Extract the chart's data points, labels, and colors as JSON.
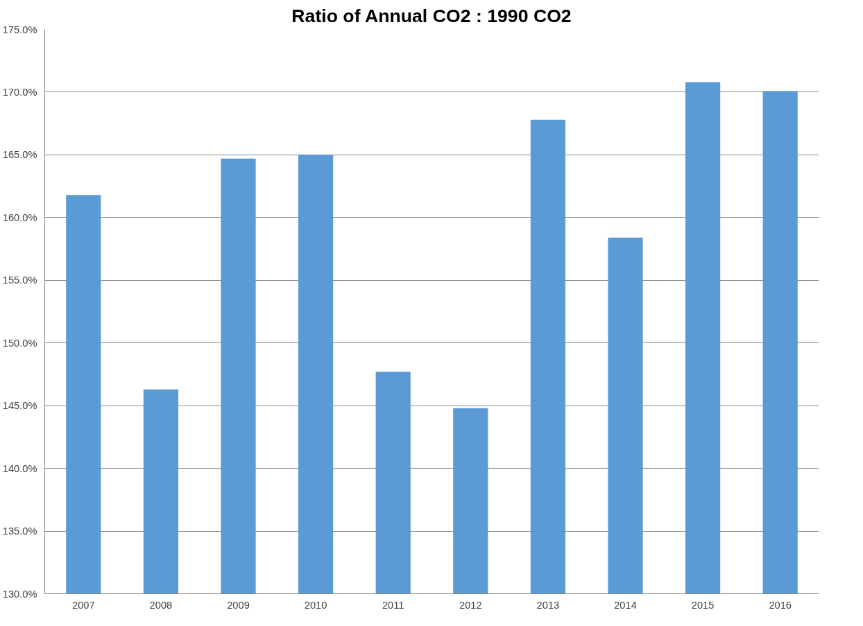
{
  "chart_data": {
    "type": "bar",
    "title": "Ratio of Annual CO2 : 1990 CO2",
    "categories": [
      "2007",
      "2008",
      "2009",
      "2010",
      "2011",
      "2012",
      "2013",
      "2014",
      "2015",
      "2016"
    ],
    "values": [
      161.8,
      146.3,
      164.7,
      165.0,
      147.7,
      144.8,
      167.8,
      158.4,
      170.8,
      170.1
    ],
    "color": "#5b9bd5",
    "ylim": [
      130,
      175
    ],
    "yticks": [
      {
        "value": 130,
        "label": "130.0%"
      },
      {
        "value": 135,
        "label": "135.0%"
      },
      {
        "value": 140,
        "label": "140.0%"
      },
      {
        "value": 145,
        "label": "145.0%"
      },
      {
        "value": 150,
        "label": "150.0%"
      },
      {
        "value": 155,
        "label": "155.0%"
      },
      {
        "value": 160,
        "label": "160.0%"
      },
      {
        "value": 165,
        "label": "165.0%"
      },
      {
        "value": 170,
        "label": "170.0%"
      },
      {
        "value": 175,
        "label": "175.0%"
      }
    ],
    "grid": "y"
  }
}
